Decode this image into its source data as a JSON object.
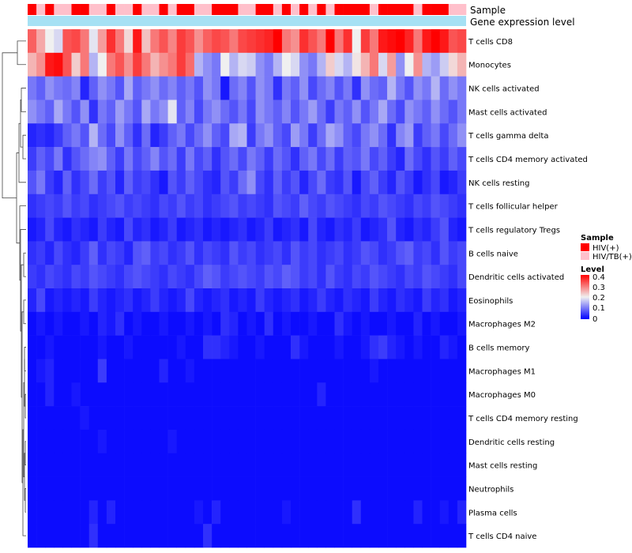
{
  "chart_data": {
    "type": "heatmap",
    "annotation_rows": [
      "Sample",
      "Gene expression level"
    ],
    "legend": {
      "sample_title": "Sample",
      "sample_entries": [
        {
          "label": "HIV(+)",
          "color": "#ff0000"
        },
        {
          "label": "HIV/TB(+)",
          "color": "#ffc0cb"
        }
      ],
      "level_title": "Level",
      "level_ticks": [
        "0.4",
        "0.3",
        "0.2",
        "0.1",
        "0"
      ]
    },
    "color_scale": {
      "low": "#0000ff",
      "mid": "#f0f0f0",
      "high": "#ff0000",
      "range": [
        0,
        0.4
      ]
    },
    "rows": [
      "T cells CD8",
      "Monocytes",
      "NK cells activated",
      "Mast cells activated",
      "T cells gamma delta",
      "T cells CD4 memory activated",
      "NK cells resting",
      "T cells follicular helper",
      "T cells regulatory  Tregs",
      "B cells naive",
      "Dendritic cells activated",
      "Eosinophils",
      "Macrophages M2",
      "B cells memory",
      "Macrophages M1",
      "Macrophages M0",
      "T cells CD4 memory resting",
      "Dendritic cells resting",
      "Mast cells resting",
      "Neutrophils",
      "Plasma cells",
      "T cells CD4 naive"
    ],
    "sample_groups": [
      "HIV(+)",
      "HIV/TB(+)",
      "HIV(+)",
      "HIV/TB(+)",
      "HIV/TB(+)",
      "HIV(+)",
      "HIV(+)",
      "HIV/TB(+)",
      "HIV/TB(+)",
      "HIV(+)",
      "HIV/TB(+)",
      "HIV/TB(+)",
      "HIV(+)",
      "HIV/TB(+)",
      "HIV/TB(+)",
      "HIV(+)",
      "HIV/TB(+)",
      "HIV(+)",
      "HIV(+)",
      "HIV/TB(+)",
      "HIV/TB(+)",
      "HIV(+)",
      "HIV(+)",
      "HIV(+)",
      "HIV/TB(+)",
      "HIV/TB(+)",
      "HIV(+)",
      "HIV(+)",
      "HIV/TB(+)",
      "HIV(+)",
      "HIV/TB(+)",
      "HIV(+)",
      "HIV/TB(+)",
      "HIV(+)",
      "HIV/TB(+)",
      "HIV(+)",
      "HIV(+)",
      "HIV(+)",
      "HIV(+)",
      "HIV/TB(+)",
      "HIV(+)",
      "HIV(+)",
      "HIV(+)",
      "HIV(+)",
      "HIV/TB(+)",
      "HIV(+)",
      "HIV(+)",
      "HIV(+)",
      "HIV/TB(+)",
      "HIV/TB(+)"
    ],
    "values": [
      [
        0.32,
        0.26,
        0.2,
        0.18,
        0.33,
        0.34,
        0.3,
        0.19,
        0.27,
        0.36,
        0.3,
        0.22,
        0.38,
        0.24,
        0.3,
        0.33,
        0.29,
        0.35,
        0.33,
        0.28,
        0.32,
        0.34,
        0.33,
        0.3,
        0.34,
        0.35,
        0.36,
        0.37,
        0.4,
        0.3,
        0.28,
        0.36,
        0.33,
        0.3,
        0.4,
        0.3,
        0.36,
        0.2,
        0.35,
        0.3,
        0.38,
        0.39,
        0.4,
        0.37,
        0.3,
        0.38,
        0.4,
        0.38,
        0.33,
        0.34
      ],
      [
        0.25,
        0.28,
        0.38,
        0.39,
        0.33,
        0.23,
        0.3,
        0.15,
        0.2,
        0.3,
        0.33,
        0.28,
        0.35,
        0.3,
        0.25,
        0.28,
        0.3,
        0.35,
        0.31,
        0.15,
        0.12,
        0.1,
        0.2,
        0.15,
        0.18,
        0.17,
        0.12,
        0.1,
        0.15,
        0.2,
        0.18,
        0.12,
        0.1,
        0.15,
        0.23,
        0.18,
        0.15,
        0.21,
        0.25,
        0.3,
        0.18,
        0.27,
        0.12,
        0.2,
        0.28,
        0.15,
        0.13,
        0.17,
        0.22,
        0.25
      ],
      [
        0.1,
        0.08,
        0.12,
        0.1,
        0.09,
        0.11,
        0.03,
        0.08,
        0.12,
        0.1,
        0.07,
        0.14,
        0.08,
        0.1,
        0.12,
        0.09,
        0.11,
        0.08,
        0.1,
        0.07,
        0.12,
        0.1,
        0.02,
        0.09,
        0.11,
        0.07,
        0.12,
        0.1,
        0.04,
        0.1,
        0.08,
        0.12,
        0.06,
        0.09,
        0.11,
        0.07,
        0.1,
        0.04,
        0.12,
        0.09,
        0.08,
        0.15,
        0.1,
        0.07,
        0.12,
        0.1,
        0.15,
        0.09,
        0.12,
        0.1
      ],
      [
        0.12,
        0.1,
        0.08,
        0.14,
        0.1,
        0.07,
        0.12,
        0.04,
        0.1,
        0.08,
        0.13,
        0.1,
        0.07,
        0.14,
        0.1,
        0.12,
        0.19,
        0.08,
        0.11,
        0.06,
        0.1,
        0.12,
        0.09,
        0.07,
        0.1,
        0.06,
        0.12,
        0.1,
        0.08,
        0.11,
        0.07,
        0.1,
        0.13,
        0.09,
        0.05,
        0.1,
        0.08,
        0.12,
        0.07,
        0.1,
        0.14,
        0.09,
        0.06,
        0.12,
        0.1,
        0.08,
        0.12,
        0.09,
        0.07,
        0.1
      ],
      [
        0.03,
        0.04,
        0.03,
        0.05,
        0.08,
        0.1,
        0.07,
        0.15,
        0.09,
        0.06,
        0.12,
        0.08,
        0.04,
        0.09,
        0.03,
        0.05,
        0.08,
        0.1,
        0.06,
        0.09,
        0.12,
        0.08,
        0.06,
        0.14,
        0.15,
        0.05,
        0.1,
        0.12,
        0.08,
        0.06,
        0.13,
        0.1,
        0.05,
        0.09,
        0.14,
        0.12,
        0.08,
        0.06,
        0.1,
        0.12,
        0.09,
        0.04,
        0.11,
        0.13,
        0.05,
        0.08,
        0.1,
        0.06,
        0.09,
        0.12
      ],
      [
        0.05,
        0.08,
        0.06,
        0.1,
        0.04,
        0.07,
        0.09,
        0.11,
        0.12,
        0.08,
        0.05,
        0.1,
        0.06,
        0.08,
        0.11,
        0.07,
        0.09,
        0.05,
        0.1,
        0.06,
        0.08,
        0.04,
        0.07,
        0.09,
        0.06,
        0.1,
        0.08,
        0.05,
        0.09,
        0.07,
        0.04,
        0.08,
        0.1,
        0.06,
        0.09,
        0.05,
        0.08,
        0.07,
        0.1,
        0.06,
        0.08,
        0.05,
        0.03,
        0.09,
        0.06,
        0.04,
        0.07,
        0.05,
        0.08,
        0.06
      ],
      [
        0.07,
        0.1,
        0.05,
        0.03,
        0.08,
        0.04,
        0.06,
        0.09,
        0.05,
        0.07,
        0.03,
        0.08,
        0.05,
        0.06,
        0.04,
        0.02,
        0.07,
        0.05,
        0.08,
        0.06,
        0.04,
        0.03,
        0.07,
        0.05,
        0.09,
        0.12,
        0.06,
        0.04,
        0.08,
        0.05,
        0.07,
        0.03,
        0.06,
        0.09,
        0.05,
        0.04,
        0.07,
        0.02,
        0.06,
        0.08,
        0.05,
        0.03,
        0.07,
        0.05,
        0.02,
        0.04,
        0.06,
        0.02,
        0.03,
        0.05
      ],
      [
        0.04,
        0.05,
        0.06,
        0.05,
        0.07,
        0.05,
        0.06,
        0.04,
        0.05,
        0.06,
        0.07,
        0.05,
        0.06,
        0.05,
        0.04,
        0.06,
        0.05,
        0.07,
        0.05,
        0.06,
        0.04,
        0.05,
        0.06,
        0.07,
        0.05,
        0.06,
        0.05,
        0.04,
        0.07,
        0.06,
        0.05,
        0.08,
        0.06,
        0.05,
        0.07,
        0.06,
        0.05,
        0.04,
        0.06,
        0.05,
        0.07,
        0.06,
        0.05,
        0.04,
        0.06,
        0.05,
        0.07,
        0.06,
        0.05,
        0.04
      ],
      [
        0.02,
        0.03,
        0.06,
        0.03,
        0.02,
        0.04,
        0.03,
        0.02,
        0.05,
        0.03,
        0.02,
        0.06,
        0.03,
        0.04,
        0.02,
        0.03,
        0.05,
        0.02,
        0.03,
        0.04,
        0.02,
        0.03,
        0.02,
        0.03,
        0.04,
        0.02,
        0.03,
        0.05,
        0.02,
        0.03,
        0.04,
        0.02,
        0.06,
        0.03,
        0.02,
        0.04,
        0.03,
        0.05,
        0.02,
        0.03,
        0.04,
        0.07,
        0.03,
        0.02,
        0.04,
        0.03,
        0.05,
        0.07,
        0.03,
        0.02
      ],
      [
        0.04,
        0.05,
        0.03,
        0.06,
        0.04,
        0.03,
        0.05,
        0.08,
        0.04,
        0.06,
        0.05,
        0.03,
        0.07,
        0.08,
        0.05,
        0.06,
        0.04,
        0.05,
        0.07,
        0.04,
        0.06,
        0.05,
        0.04,
        0.07,
        0.05,
        0.06,
        0.04,
        0.05,
        0.06,
        0.04,
        0.07,
        0.05,
        0.06,
        0.04,
        0.05,
        0.06,
        0.04,
        0.05,
        0.07,
        0.06,
        0.04,
        0.05,
        0.07,
        0.08,
        0.05,
        0.06,
        0.04,
        0.07,
        0.05,
        0.06
      ],
      [
        0.05,
        0.04,
        0.06,
        0.05,
        0.04,
        0.06,
        0.05,
        0.07,
        0.06,
        0.05,
        0.04,
        0.06,
        0.07,
        0.06,
        0.05,
        0.04,
        0.06,
        0.05,
        0.04,
        0.06,
        0.08,
        0.07,
        0.05,
        0.06,
        0.07,
        0.06,
        0.05,
        0.07,
        0.06,
        0.08,
        0.07,
        0.05,
        0.06,
        0.04,
        0.07,
        0.05,
        0.04,
        0.06,
        0.05,
        0.07,
        0.06,
        0.05,
        0.04,
        0.06,
        0.05,
        0.07,
        0.06,
        0.05,
        0.04,
        0.06
      ],
      [
        0.03,
        0.06,
        0.02,
        0.03,
        0.02,
        0.03,
        0.02,
        0.05,
        0.03,
        0.02,
        0.03,
        0.04,
        0.02,
        0.03,
        0.05,
        0.03,
        0.02,
        0.03,
        0.06,
        0.03,
        0.02,
        0.03,
        0.04,
        0.02,
        0.03,
        0.02,
        0.05,
        0.03,
        0.02,
        0.03,
        0.04,
        0.02,
        0.03,
        0.05,
        0.03,
        0.02,
        0.04,
        0.03,
        0.02,
        0.05,
        0.03,
        0.02,
        0.04,
        0.03,
        0.02,
        0.05,
        0.03,
        0.04,
        0.02,
        0.03
      ],
      [
        0.01,
        0.02,
        0.01,
        0.02,
        0.01,
        0.01,
        0.02,
        0.01,
        0.03,
        0.02,
        0.04,
        0.01,
        0.02,
        0.01,
        0.01,
        0.02,
        0.01,
        0.01,
        0.02,
        0.01,
        0.02,
        0.01,
        0.04,
        0.03,
        0.01,
        0.02,
        0.01,
        0.04,
        0.01,
        0.02,
        0.01,
        0.01,
        0.02,
        0.01,
        0.01,
        0.04,
        0.02,
        0.01,
        0.02,
        0.01,
        0.01,
        0.02,
        0.01,
        0.01,
        0.03,
        0.01,
        0.02,
        0.01,
        0.01,
        0.02
      ],
      [
        0.01,
        0.01,
        0.02,
        0.01,
        0.01,
        0.01,
        0.01,
        0.01,
        0.02,
        0.01,
        0.01,
        0.02,
        0.01,
        0.01,
        0.01,
        0.01,
        0.01,
        0.02,
        0.01,
        0.01,
        0.04,
        0.04,
        0.03,
        0.02,
        0.01,
        0.01,
        0.02,
        0.01,
        0.01,
        0.01,
        0.04,
        0.02,
        0.01,
        0.01,
        0.01,
        0.02,
        0.01,
        0.01,
        0.02,
        0.04,
        0.05,
        0.03,
        0.02,
        0.01,
        0.02,
        0.01,
        0.01,
        0.03,
        0.02,
        0.01
      ],
      [
        0.01,
        0.02,
        0.03,
        0.01,
        0.01,
        0.01,
        0.01,
        0.01,
        0.05,
        0.01,
        0.01,
        0.01,
        0.01,
        0.01,
        0.01,
        0.03,
        0.01,
        0.01,
        0.02,
        0.01,
        0.01,
        0.01,
        0.01,
        0.01,
        0.01,
        0.01,
        0.01,
        0.01,
        0.01,
        0.01,
        0.01,
        0.01,
        0.01,
        0.01,
        0.01,
        0.01,
        0.01,
        0.01,
        0.01,
        0.02,
        0.01,
        0.01,
        0.01,
        0.01,
        0.01,
        0.01,
        0.01,
        0.01,
        0.01,
        0.01
      ],
      [
        0.01,
        0.01,
        0.03,
        0.01,
        0.01,
        0.02,
        0.01,
        0.01,
        0.01,
        0.01,
        0.01,
        0.01,
        0.01,
        0.01,
        0.01,
        0.01,
        0.01,
        0.01,
        0.01,
        0.01,
        0.01,
        0.01,
        0.01,
        0.01,
        0.01,
        0.01,
        0.01,
        0.01,
        0.01,
        0.01,
        0.01,
        0.01,
        0.01,
        0.03,
        0.01,
        0.01,
        0.01,
        0.01,
        0.01,
        0.01,
        0.01,
        0.01,
        0.01,
        0.01,
        0.01,
        0.01,
        0.01,
        0.01,
        0.01,
        0.01
      ],
      [
        0.01,
        0.01,
        0.01,
        0.01,
        0.01,
        0.01,
        0.02,
        0.01,
        0.01,
        0.01,
        0.01,
        0.01,
        0.01,
        0.01,
        0.01,
        0.01,
        0.01,
        0.01,
        0.01,
        0.01,
        0.01,
        0.01,
        0.01,
        0.01,
        0.01,
        0.01,
        0.01,
        0.01,
        0.01,
        0.01,
        0.01,
        0.01,
        0.01,
        0.01,
        0.01,
        0.01,
        0.01,
        0.01,
        0.01,
        0.01,
        0.01,
        0.01,
        0.01,
        0.01,
        0.01,
        0.01,
        0.01,
        0.01,
        0.01,
        0.01
      ],
      [
        0.01,
        0.01,
        0.01,
        0.01,
        0.01,
        0.01,
        0.01,
        0.01,
        0.02,
        0.01,
        0.01,
        0.01,
        0.01,
        0.01,
        0.01,
        0.01,
        0.02,
        0.01,
        0.01,
        0.01,
        0.01,
        0.01,
        0.01,
        0.01,
        0.01,
        0.01,
        0.01,
        0.01,
        0.01,
        0.01,
        0.01,
        0.01,
        0.01,
        0.01,
        0.01,
        0.01,
        0.01,
        0.01,
        0.01,
        0.01,
        0.01,
        0.01,
        0.01,
        0.01,
        0.01,
        0.01,
        0.01,
        0.01,
        0.01,
        0.01
      ],
      [
        0.01,
        0.01,
        0.01,
        0.01,
        0.01,
        0.01,
        0.01,
        0.01,
        0.01,
        0.01,
        0.01,
        0.01,
        0.01,
        0.01,
        0.01,
        0.01,
        0.01,
        0.01,
        0.01,
        0.01,
        0.01,
        0.01,
        0.01,
        0.01,
        0.01,
        0.01,
        0.01,
        0.01,
        0.01,
        0.01,
        0.01,
        0.01,
        0.01,
        0.01,
        0.01,
        0.01,
        0.01,
        0.01,
        0.01,
        0.01,
        0.01,
        0.01,
        0.01,
        0.01,
        0.01,
        0.01,
        0.01,
        0.01,
        0.01,
        0.01
      ],
      [
        0.01,
        0.01,
        0.01,
        0.01,
        0.01,
        0.01,
        0.01,
        0.01,
        0.01,
        0.01,
        0.01,
        0.01,
        0.01,
        0.01,
        0.01,
        0.01,
        0.01,
        0.01,
        0.01,
        0.01,
        0.01,
        0.01,
        0.01,
        0.01,
        0.01,
        0.01,
        0.01,
        0.01,
        0.01,
        0.01,
        0.01,
        0.01,
        0.01,
        0.01,
        0.01,
        0.01,
        0.01,
        0.01,
        0.01,
        0.01,
        0.01,
        0.01,
        0.01,
        0.01,
        0.01,
        0.01,
        0.01,
        0.01,
        0.01,
        0.01
      ],
      [
        0.01,
        0.01,
        0.01,
        0.01,
        0.01,
        0.01,
        0.01,
        0.03,
        0.01,
        0.03,
        0.01,
        0.01,
        0.01,
        0.01,
        0.01,
        0.01,
        0.01,
        0.01,
        0.01,
        0.02,
        0.01,
        0.03,
        0.01,
        0.01,
        0.01,
        0.01,
        0.01,
        0.01,
        0.01,
        0.02,
        0.01,
        0.01,
        0.01,
        0.01,
        0.01,
        0.01,
        0.01,
        0.04,
        0.01,
        0.01,
        0.01,
        0.01,
        0.01,
        0.01,
        0.03,
        0.01,
        0.01,
        0.02,
        0.01,
        0.03
      ],
      [
        0.01,
        0.01,
        0.01,
        0.01,
        0.01,
        0.01,
        0.01,
        0.04,
        0.01,
        0.01,
        0.01,
        0.01,
        0.01,
        0.01,
        0.01,
        0.01,
        0.01,
        0.01,
        0.01,
        0.01,
        0.04,
        0.01,
        0.01,
        0.01,
        0.01,
        0.01,
        0.01,
        0.01,
        0.01,
        0.01,
        0.01,
        0.01,
        0.01,
        0.01,
        0.01,
        0.01,
        0.01,
        0.01,
        0.01,
        0.01,
        0.01,
        0.01,
        0.01,
        0.01,
        0.01,
        0.01,
        0.01,
        0.01,
        0.01,
        0.01
      ]
    ]
  }
}
